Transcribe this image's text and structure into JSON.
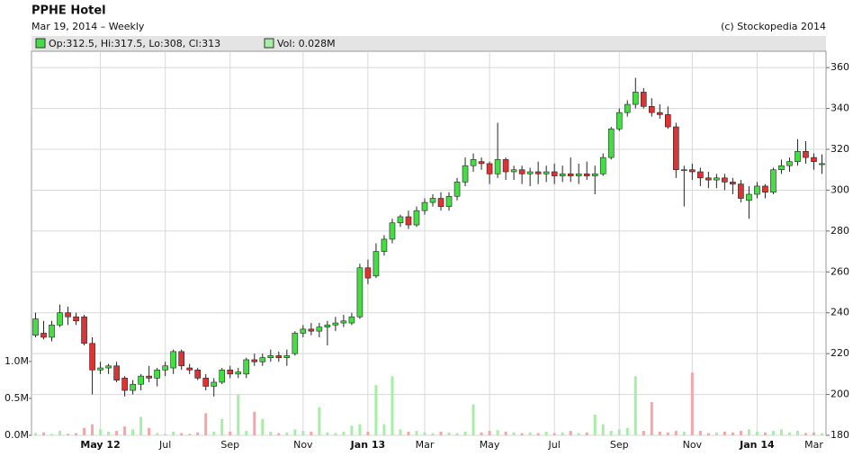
{
  "chart_data": {
    "type": "candlestick",
    "title": "PPHE Hotel",
    "subtitle": "Mar 19, 2014 – Weekly",
    "source": "(c) Stockopedia 2014",
    "legend": [
      "Op:312.5, Hi:317.5, Lo:308, Cl:313",
      "Vol: 0.028M"
    ],
    "up_color": "#44dd44",
    "down_color": "#dd3333",
    "volume_up_color": "#a6eea6",
    "volume_down_color": "#f4a6a6",
    "grid": true,
    "categories": [
      null,
      null,
      null,
      null,
      null,
      null,
      null,
      null,
      "May 12",
      null,
      null,
      null,
      null,
      null,
      null,
      null,
      "Jul",
      null,
      null,
      null,
      null,
      null,
      null,
      null,
      "Sep",
      null,
      null,
      null,
      null,
      null,
      null,
      null,
      null,
      "Nov",
      null,
      null,
      null,
      null,
      null,
      null,
      null,
      "Jan 13",
      null,
      null,
      null,
      null,
      null,
      null,
      "Mar",
      null,
      null,
      null,
      null,
      null,
      null,
      null,
      "May",
      null,
      null,
      null,
      null,
      null,
      null,
      null,
      "Jul",
      null,
      null,
      null,
      null,
      null,
      null,
      null,
      "Sep",
      null,
      null,
      null,
      null,
      null,
      null,
      null,
      null,
      "Nov",
      null,
      null,
      null,
      null,
      null,
      null,
      null,
      "Jan 14",
      null,
      null,
      null,
      null,
      null,
      null,
      "Mar",
      null
    ],
    "open": [
      229,
      230,
      228,
      234,
      240,
      238,
      238,
      225,
      212,
      213,
      214,
      208,
      202,
      205,
      209,
      208,
      212,
      213,
      221,
      213,
      212,
      208,
      204,
      206,
      212,
      210,
      210,
      217,
      216,
      218,
      219,
      218,
      220,
      230,
      232,
      231,
      233,
      234,
      235,
      235,
      238,
      262,
      258,
      270,
      276,
      284,
      287,
      283,
      290,
      294,
      296,
      292,
      297,
      304,
      312,
      314,
      313,
      308,
      315,
      309,
      310,
      308,
      309,
      308,
      309,
      307,
      308,
      307,
      308,
      307,
      308,
      316,
      330,
      338,
      342,
      348,
      341,
      338,
      337,
      331,
      310,
      310,
      309,
      306,
      305,
      306,
      304,
      303,
      295,
      298,
      302,
      299,
      310,
      312,
      314,
      319,
      316,
      312.5
    ],
    "high": [
      240,
      236,
      236,
      244,
      243,
      240,
      239,
      228,
      216,
      215,
      216,
      209,
      207,
      210,
      214,
      213,
      216,
      222,
      222,
      215,
      213,
      210,
      208,
      213,
      214,
      213,
      218,
      220,
      220,
      222,
      221,
      222,
      231,
      234,
      235,
      235,
      236,
      238,
      239,
      240,
      264,
      266,
      274,
      278,
      286,
      288,
      290,
      292,
      296,
      298,
      299,
      299,
      306,
      316,
      318,
      316,
      314,
      333,
      316,
      312,
      312,
      311,
      314,
      312,
      313,
      312,
      316,
      313,
      314,
      312,
      318,
      331,
      340,
      344,
      355,
      350,
      345,
      342,
      341,
      333,
      312,
      313,
      311,
      309,
      308,
      308,
      306,
      305,
      302,
      304,
      303,
      311,
      315,
      316,
      325,
      324,
      318,
      317.5
    ],
    "low": [
      228,
      227,
      226,
      233,
      234,
      234,
      224,
      200,
      210,
      210,
      206,
      199,
      200,
      202,
      206,
      204,
      209,
      210,
      212,
      210,
      207,
      202,
      199,
      205,
      208,
      208,
      208,
      214,
      214,
      216,
      216,
      214,
      219,
      228,
      229,
      228,
      224,
      231,
      233,
      234,
      237,
      254,
      257,
      268,
      274,
      282,
      281,
      282,
      288,
      292,
      290,
      290,
      295,
      302,
      309,
      310,
      303,
      306,
      305,
      305,
      303,
      302,
      303,
      304,
      303,
      304,
      304,
      303,
      305,
      298,
      307,
      315,
      329,
      336,
      340,
      340,
      336,
      335,
      330,
      306,
      292,
      305,
      302,
      301,
      301,
      300,
      298,
      294,
      286,
      296,
      296,
      298,
      308,
      309,
      312,
      313,
      310,
      308
    ],
    "close": [
      237,
      228,
      234,
      240,
      238,
      236,
      225,
      212,
      213,
      214,
      207,
      202,
      205,
      209,
      208,
      212,
      214,
      221,
      214,
      212,
      208,
      204,
      206,
      212,
      210,
      211,
      217,
      216,
      218,
      219,
      218,
      219,
      230,
      232,
      231,
      233,
      234,
      235,
      236,
      238,
      262,
      257,
      270,
      276,
      284,
      287,
      283,
      290,
      294,
      296,
      292,
      297,
      304,
      312,
      315,
      313,
      308,
      315,
      309,
      310,
      308,
      309,
      308,
      309,
      307,
      308,
      307,
      308,
      307,
      308,
      316,
      330,
      338,
      342,
      348,
      341,
      338,
      337,
      331,
      310,
      310,
      309,
      306,
      305,
      306,
      304,
      303,
      296,
      298,
      302,
      299,
      310,
      312,
      314,
      319,
      316,
      314,
      313
    ],
    "volume": [
      0.03,
      0.04,
      0.02,
      0.06,
      0.02,
      0.03,
      0.1,
      0.15,
      0.08,
      0.05,
      0.06,
      0.12,
      0.08,
      0.25,
      0.1,
      0.03,
      0.02,
      0.05,
      0.03,
      0.02,
      0.04,
      0.3,
      0.05,
      0.22,
      0.05,
      0.55,
      0.06,
      0.32,
      0.22,
      0.05,
      0.03,
      0.04,
      0.08,
      0.06,
      0.05,
      0.38,
      0.04,
      0.03,
      0.05,
      0.13,
      0.15,
      0.05,
      0.68,
      0.15,
      0.8,
      0.08,
      0.05,
      0.06,
      0.04,
      0.03,
      0.05,
      0.04,
      0.03,
      0.05,
      0.42,
      0.04,
      0.06,
      0.07,
      0.05,
      0.04,
      0.03,
      0.04,
      0.03,
      0.05,
      0.03,
      0.04,
      0.06,
      0.03,
      0.04,
      0.28,
      0.15,
      0.06,
      0.08,
      0.1,
      0.8,
      0.06,
      0.45,
      0.05,
      0.04,
      0.06,
      0.05,
      0.85,
      0.06,
      0.03,
      0.04,
      0.05,
      0.04,
      0.06,
      0.08,
      0.05,
      0.04,
      0.06,
      0.08,
      0.04,
      0.06,
      0.03,
      0.04,
      0.028
    ],
    "ylim": [
      180,
      368
    ],
    "yticks": [
      180,
      200,
      220,
      240,
      260,
      280,
      300,
      320,
      340,
      360
    ],
    "y2lim": [
      0,
      5.2
    ],
    "y2ticks": [
      {
        "value": 0,
        "label": "0.0M"
      },
      {
        "value": 0.5,
        "label": "0.5M"
      },
      {
        "value": 1,
        "label": "1.0M"
      }
    ]
  }
}
